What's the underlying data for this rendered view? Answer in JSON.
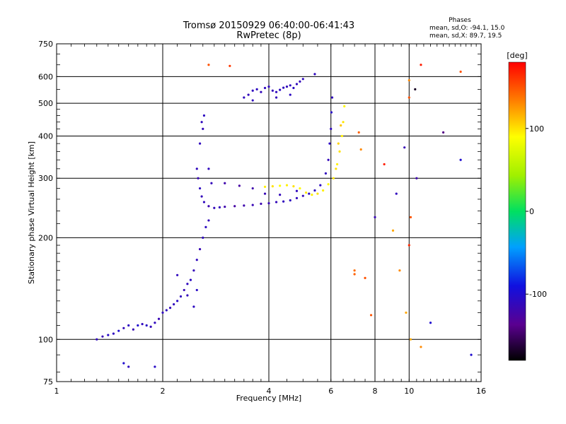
{
  "header": {
    "title_line1": "Tromsø 20150929 06:40:00-06:41:43",
    "title_line2": "RwPretec (8p)"
  },
  "stats": {
    "heading": "Phases",
    "line_o": "mean, sd,O: -94.1, 15.0",
    "line_x": "mean, sd,X:  89.7, 19.5"
  },
  "colorbar": {
    "unit": "[deg]",
    "ticks": [
      {
        "value": 100,
        "label": "100"
      },
      {
        "value": 0,
        "label": "0"
      },
      {
        "value": -100,
        "label": "-100"
      }
    ],
    "range": [
      -180,
      180
    ]
  },
  "chart_data": {
    "type": "scatter",
    "title": "Tromsø 20150929 06:40:00-06:41:43",
    "subtitle": "RwPretec (8p)",
    "xlabel": "Frequency [MHz]",
    "ylabel": "Stationary phase Virtual Height [km]",
    "xscale": "log",
    "yscale": "log",
    "xlim": [
      1,
      16
    ],
    "ylim": [
      75,
      750
    ],
    "xticks": [
      {
        "value": 1,
        "label": "1"
      },
      {
        "value": 2,
        "label": "2"
      },
      {
        "value": 4,
        "label": "4"
      },
      {
        "value": 6,
        "label": "6"
      },
      {
        "value": 8,
        "label": "8"
      },
      {
        "value": 10,
        "label": "10"
      },
      {
        "value": 16,
        "label": "16"
      }
    ],
    "yticks": [
      {
        "value": 75,
        "label": "75"
      },
      {
        "value": 100,
        "label": "100"
      },
      {
        "value": 200,
        "label": "200"
      },
      {
        "value": 300,
        "label": "300"
      },
      {
        "value": 400,
        "label": "400"
      },
      {
        "value": 500,
        "label": "500"
      },
      {
        "value": 600,
        "label": "600"
      },
      {
        "value": 750,
        "label": "750"
      }
    ],
    "grid": true,
    "color_scale": "phase [deg], -180 to 180, rainbow",
    "series": [
      {
        "points": [
          [
            1.3,
            100,
            -110
          ],
          [
            1.35,
            102,
            -115
          ],
          [
            1.4,
            103,
            -105
          ],
          [
            1.45,
            104,
            -110
          ],
          [
            1.5,
            106,
            -100
          ],
          [
            1.55,
            108,
            -112
          ],
          [
            1.6,
            110,
            -108
          ],
          [
            1.65,
            107,
            -115
          ],
          [
            1.7,
            110,
            -100
          ],
          [
            1.75,
            111,
            -110
          ],
          [
            1.8,
            110,
            -105
          ],
          [
            1.85,
            109,
            -112
          ],
          [
            1.9,
            112,
            -110
          ],
          [
            1.95,
            115,
            -115
          ],
          [
            2.0,
            120,
            -110
          ],
          [
            2.05,
            122,
            -108
          ],
          [
            2.1,
            124,
            -112
          ],
          [
            2.15,
            127,
            -110
          ],
          [
            2.2,
            130,
            -105
          ],
          [
            2.25,
            134,
            -110
          ],
          [
            2.3,
            140,
            -115
          ],
          [
            2.35,
            146,
            -110
          ],
          [
            2.4,
            150,
            -108
          ],
          [
            2.45,
            160,
            -112
          ],
          [
            2.5,
            172,
            -110
          ],
          [
            2.55,
            185,
            -115
          ],
          [
            2.6,
            200,
            -110
          ],
          [
            2.65,
            215,
            -108
          ],
          [
            2.7,
            225,
            -112
          ],
          [
            1.55,
            85,
            -100
          ],
          [
            1.6,
            83,
            -110
          ],
          [
            1.9,
            83,
            -105
          ],
          [
            2.2,
            155,
            -110
          ],
          [
            2.35,
            135,
            -112
          ],
          [
            2.45,
            125,
            -108
          ],
          [
            2.5,
            140,
            -105
          ]
        ]
      },
      {
        "points": [
          [
            2.5,
            320,
            -110
          ],
          [
            2.52,
            300,
            -115
          ],
          [
            2.55,
            280,
            -108
          ],
          [
            2.58,
            265,
            -112
          ],
          [
            2.62,
            255,
            -110
          ],
          [
            2.7,
            248,
            -118
          ],
          [
            2.8,
            245,
            -112
          ],
          [
            2.9,
            246,
            -110
          ],
          [
            3.0,
            247,
            -120
          ],
          [
            3.2,
            248,
            -125
          ],
          [
            3.4,
            249,
            -120
          ],
          [
            3.6,
            250,
            -115
          ],
          [
            3.8,
            252,
            -118
          ],
          [
            4.0,
            253,
            -115
          ],
          [
            4.2,
            255,
            -112
          ],
          [
            4.4,
            256,
            -110
          ],
          [
            4.6,
            258,
            -108
          ],
          [
            4.8,
            262,
            -110
          ],
          [
            5.0,
            266,
            -112
          ],
          [
            5.2,
            270,
            -108
          ],
          [
            5.4,
            276,
            -110
          ],
          [
            5.6,
            286,
            -108
          ],
          [
            5.8,
            310,
            -110
          ],
          [
            5.9,
            340,
            -112
          ],
          [
            5.95,
            380,
            -108
          ],
          [
            6.0,
            420,
            -110
          ],
          [
            6.02,
            470,
            -105
          ],
          [
            6.05,
            520,
            -110
          ],
          [
            2.55,
            380,
            -110
          ],
          [
            2.6,
            420,
            -112
          ],
          [
            2.62,
            460,
            -108
          ],
          [
            2.58,
            440,
            -110
          ],
          [
            3.0,
            290,
            -120
          ],
          [
            3.3,
            285,
            -125
          ],
          [
            3.6,
            280,
            -120
          ],
          [
            3.9,
            270,
            -115
          ],
          [
            4.3,
            268,
            -112
          ],
          [
            4.8,
            275,
            -110
          ],
          [
            2.7,
            320,
            -110
          ],
          [
            2.75,
            290,
            -112
          ]
        ]
      },
      {
        "points": [
          [
            3.4,
            520,
            -110
          ],
          [
            3.5,
            530,
            -112
          ],
          [
            3.6,
            545,
            -110
          ],
          [
            3.7,
            550,
            -108
          ],
          [
            3.8,
            540,
            -112
          ],
          [
            3.9,
            555,
            -110
          ],
          [
            4.0,
            560,
            -110
          ],
          [
            4.1,
            545,
            -112
          ],
          [
            4.2,
            540,
            -110
          ],
          [
            4.3,
            548,
            -108
          ],
          [
            4.4,
            556,
            -110
          ],
          [
            4.5,
            560,
            -112
          ],
          [
            4.6,
            565,
            -110
          ],
          [
            4.7,
            555,
            -108
          ],
          [
            4.8,
            570,
            -110
          ],
          [
            4.9,
            580,
            -112
          ],
          [
            5.0,
            590,
            -110
          ],
          [
            3.6,
            510,
            -110
          ],
          [
            4.2,
            520,
            -112
          ],
          [
            4.6,
            530,
            -108
          ],
          [
            5.4,
            610,
            -110
          ]
        ]
      },
      {
        "points": [
          [
            3.9,
            283,
            95
          ],
          [
            4.1,
            284,
            100
          ],
          [
            4.3,
            285,
            90
          ],
          [
            4.5,
            286,
            95
          ],
          [
            4.7,
            284,
            100
          ],
          [
            4.9,
            280,
            92
          ],
          [
            5.1,
            272,
            98
          ],
          [
            5.3,
            268,
            95
          ],
          [
            5.5,
            270,
            100
          ],
          [
            5.7,
            276,
            95
          ],
          [
            5.9,
            288,
            92
          ],
          [
            6.1,
            300,
            98
          ],
          [
            6.25,
            330,
            95
          ],
          [
            6.35,
            360,
            100
          ],
          [
            6.45,
            400,
            95
          ],
          [
            6.5,
            440,
            98
          ],
          [
            6.55,
            490,
            92
          ],
          [
            6.4,
            430,
            110
          ],
          [
            6.3,
            380,
            105
          ],
          [
            6.2,
            320,
            100
          ]
        ]
      },
      {
        "points": [
          [
            2.7,
            650,
            150
          ],
          [
            3.1,
            645,
            160
          ],
          [
            7.2,
            410,
            145
          ],
          [
            7.3,
            365,
            130
          ],
          [
            7.0,
            160,
            140
          ],
          [
            7.0,
            156,
            145
          ],
          [
            7.5,
            152,
            150
          ],
          [
            7.8,
            118,
            150
          ],
          [
            8.5,
            330,
            170
          ],
          [
            9.2,
            270,
            -110
          ],
          [
            9.0,
            210,
            120
          ],
          [
            9.4,
            160,
            130
          ],
          [
            9.8,
            120,
            120
          ],
          [
            10.0,
            520,
            150
          ],
          [
            10.0,
            585,
            130
          ],
          [
            10.0,
            190,
            165
          ],
          [
            10.1,
            230,
            150
          ],
          [
            10.4,
            550,
            -170
          ],
          [
            10.5,
            300,
            -120
          ],
          [
            10.8,
            650,
            170
          ],
          [
            10.8,
            95,
            130
          ],
          [
            11.5,
            112,
            -100
          ],
          [
            12.5,
            410,
            -140
          ],
          [
            14.0,
            620,
            150
          ],
          [
            15.0,
            90,
            -100
          ],
          [
            14.0,
            340,
            -100
          ],
          [
            8.0,
            230,
            -115
          ],
          [
            9.7,
            370,
            -115
          ],
          [
            10.1,
            100,
            120
          ]
        ]
      }
    ]
  }
}
